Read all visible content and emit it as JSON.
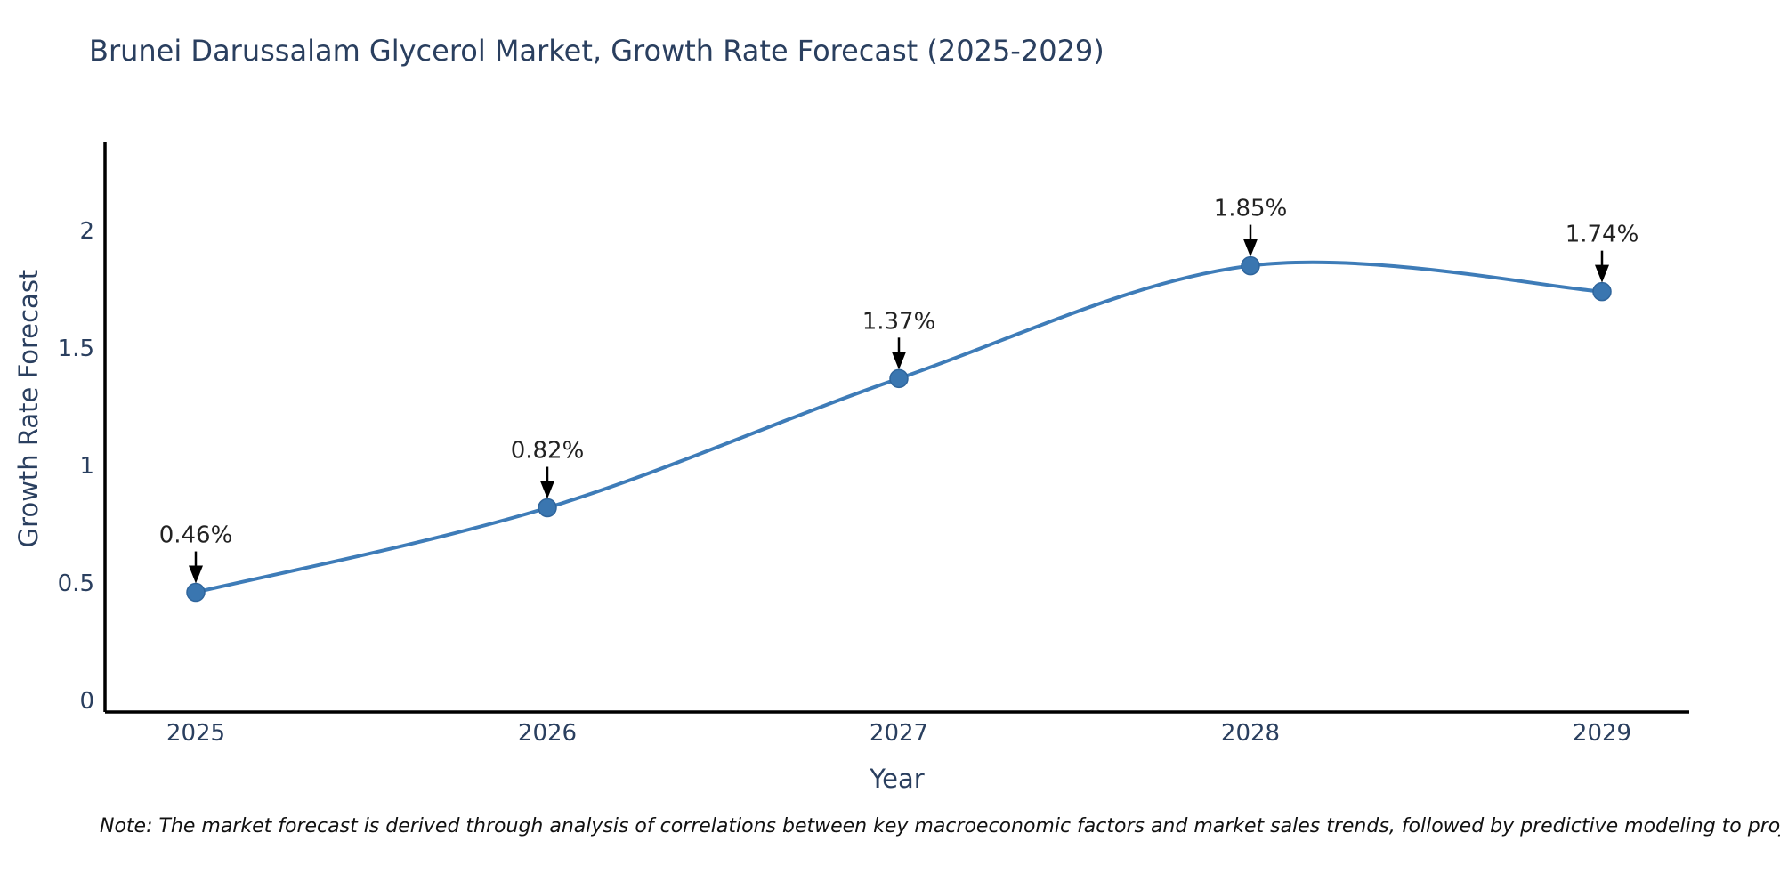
{
  "title": "Brunei Darussalam Glycerol Market, Growth Rate Forecast (2025-2029)",
  "note": "Note: The market forecast is derived through analysis of correlations between key macroeconomic factors and market sales trends, followed by predictive modeling to project future sales",
  "colors": {
    "line": "#3e7cb8",
    "marker_fill": "#3a76b0",
    "marker_edge": "#2f659c",
    "text": "#2a3f5f",
    "annotation": "#222222",
    "arrow": "#000000",
    "axis": "#000000",
    "background": "#ffffff"
  },
  "chart_data": {
    "type": "line",
    "title": "Brunei Darussalam Glycerol Market, Growth Rate Forecast (2025-2029)",
    "xlabel": "Year",
    "ylabel": "Growth Rate Forecast",
    "categories": [
      "2025",
      "2026",
      "2027",
      "2028",
      "2029"
    ],
    "series": [
      {
        "name": "Growth Rate Forecast",
        "values": [
          0.46,
          0.82,
          1.37,
          1.85,
          1.74
        ]
      }
    ],
    "point_labels": [
      "0.46%",
      "0.82%",
      "1.37%",
      "1.85%",
      "1.74%"
    ],
    "yticks": [
      0,
      0.5,
      1,
      1.5,
      2
    ],
    "ylim": [
      -0.05,
      2.38
    ],
    "grid": false,
    "legend_position": "none",
    "line_shape": "spline",
    "markers": true,
    "annotations": "percentage value above each point with downward black arrow"
  }
}
